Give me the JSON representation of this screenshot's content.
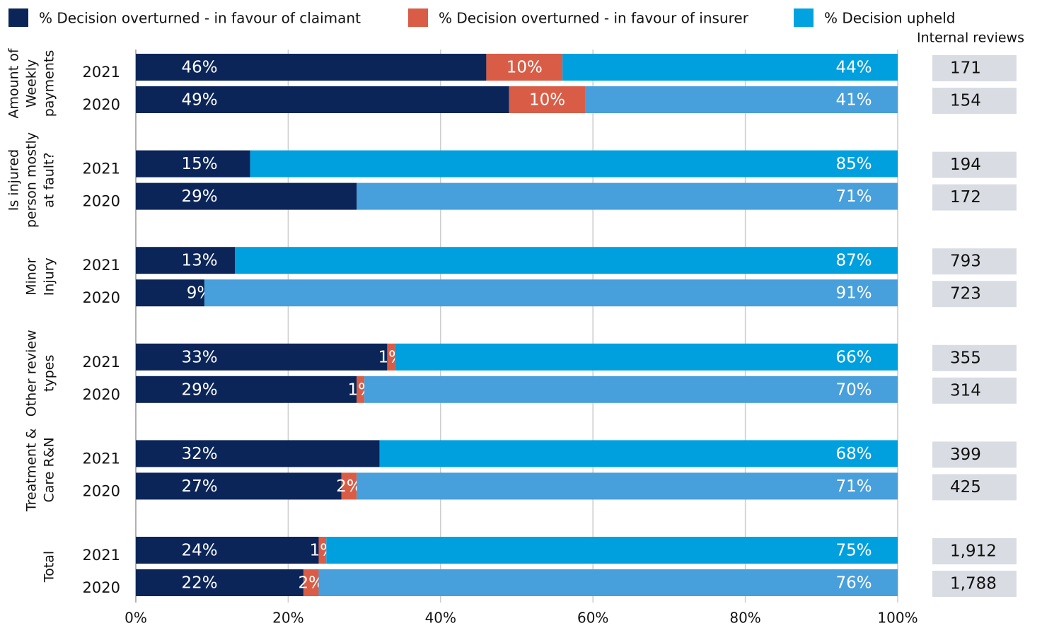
{
  "chart_data": {
    "type": "stacked-bar-horizontal",
    "groups": [
      {
        "label": [
          "Amount of",
          "Weekly",
          "payments"
        ],
        "categories": [
          "2021",
          "2020"
        ]
      },
      {
        "label": [
          "Is injured",
          "person mostly",
          "at fault?"
        ],
        "categories": [
          "2021",
          "2020"
        ]
      },
      {
        "label": [
          "Minor",
          "Injury"
        ],
        "categories": [
          "2021",
          "2020"
        ]
      },
      {
        "label": [
          "Other review",
          "types"
        ],
        "categories": [
          "2021",
          "2020"
        ]
      },
      {
        "label": [
          "Treatment &",
          "Care R&N"
        ],
        "categories": [
          "2021",
          "2020"
        ]
      },
      {
        "label": [
          "Total"
        ],
        "categories": [
          "2021",
          "2020"
        ]
      }
    ],
    "series": [
      {
        "name": "% Decision overturned - in favour of claimant",
        "color": "#0b2559",
        "values": [
          46,
          49,
          15,
          29,
          13,
          9,
          33,
          29,
          32,
          27,
          24,
          22
        ],
        "value_labels": [
          "46%",
          "49%",
          "15%",
          "29%",
          "13%",
          "9%",
          "33%",
          "29%",
          "32%",
          "27%",
          "24%",
          "22%"
        ]
      },
      {
        "name": "% Decision overturned - in favour of insurer",
        "color": "#d95d46",
        "values": [
          10,
          10,
          null,
          null,
          null,
          null,
          1,
          1,
          null,
          2,
          1,
          2
        ],
        "value_labels": [
          "10%",
          "10%",
          null,
          null,
          null,
          null,
          "1%",
          "1%",
          null,
          "2%",
          "1%",
          "2%"
        ]
      },
      {
        "name": "% Decision upheld",
        "color": "#00a3e0",
        "colors": [
          "#00a0df",
          "#479fdb",
          "#00a0df",
          "#479fdb",
          "#00a0df",
          "#479fdb",
          "#00a0df",
          "#479fdb",
          "#00a0df",
          "#479fdb",
          "#00a0df",
          "#479fdb"
        ],
        "values": [
          44,
          41,
          85,
          71,
          87,
          91,
          66,
          70,
          68,
          71,
          75,
          76
        ],
        "value_labels": [
          "44%",
          "41%",
          "85%",
          "71%",
          "87%",
          "91%",
          "66%",
          "70%",
          "68%",
          "71%",
          "75%",
          "76%"
        ]
      }
    ],
    "reviews": {
      "title": "Internal reviews",
      "color": "#d9dde3",
      "values": [
        171,
        154,
        194,
        172,
        793,
        723,
        355,
        314,
        399,
        425,
        1912,
        1788
      ],
      "value_labels": [
        "171",
        "154",
        "194",
        "172",
        "793",
        "723",
        "355",
        "314",
        "399",
        "425",
        "1,912",
        "1,788"
      ]
    },
    "xlim": [
      0,
      100
    ],
    "xticks": [
      {
        "value": 0,
        "label": "0%"
      },
      {
        "value": 20,
        "label": "20%"
      },
      {
        "value": 40,
        "label": "40%"
      },
      {
        "value": 60,
        "label": "60%"
      },
      {
        "value": 80,
        "label": "80%"
      },
      {
        "value": 100,
        "label": "100%"
      }
    ],
    "grid": true
  }
}
